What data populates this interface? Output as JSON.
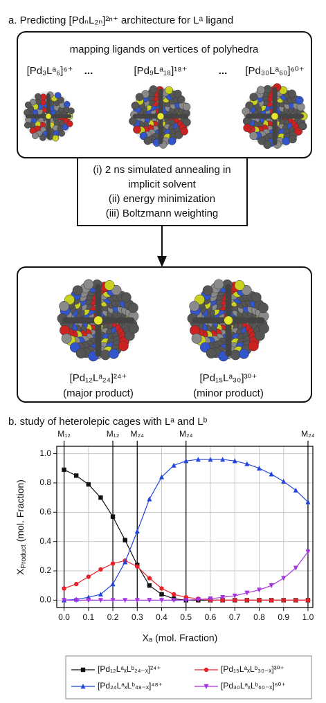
{
  "panel_a": {
    "title": "a. Predicting [PdₙL₂ₙ]²ⁿ⁺ architecture for Lᵃ ligand",
    "box_title": "mapping ligands on vertices of polyhedra",
    "ellipsis": "...",
    "candidates": [
      "[Pd₃Lᵃ₆]⁶⁺",
      "[Pd₉Lᵃ₁₈]¹⁸⁺",
      "[Pd₃₀Lᵃ₆₀]⁶⁰⁺"
    ],
    "steps": [
      "(i) 2 ns simulated annealing in",
      "implicit solvent",
      "(ii) energy minimization",
      "(iii) Boltzmann weighting"
    ],
    "products": [
      {
        "formula": "[Pd₁₂Lᵃ₂₄]²⁴⁺",
        "note": "(major product)"
      },
      {
        "formula": "[Pd₁₅Lᵃ₃₀]³⁰⁺",
        "note": "(minor product)"
      }
    ]
  },
  "chart_data": {
    "type": "line",
    "title": "b. study of heterolepic cages with Lᵃ and Lᵇ",
    "x_label": "Xₐ  (mol. Fraction)",
    "y_label": {
      "main": "X",
      "sub": "Product",
      "unit": " (mol. Fraction)"
    },
    "x": [
      0,
      0.05,
      0.1,
      0.15,
      0.2,
      0.25,
      0.3,
      0.35,
      0.4,
      0.45,
      0.5,
      0.55,
      0.6,
      0.65,
      0.7,
      0.75,
      0.8,
      0.85,
      0.9,
      0.95,
      1
    ],
    "series": [
      {
        "name": "[Pd₁₂LᵃₓLᵇ₂₄₋ₓ]²⁴⁺",
        "color": "#111111",
        "marker": "square",
        "values": [
          0.89,
          0.85,
          0.79,
          0.7,
          0.57,
          0.41,
          0.24,
          0.1,
          0.04,
          0.01,
          0,
          0,
          0,
          0,
          0,
          0,
          0,
          0,
          0,
          0,
          0
        ]
      },
      {
        "name": "[Pd₁₅LᵃₓLᵇ₃₀₋ₓ]³⁰⁺",
        "color": "#e8222a",
        "marker": "circle",
        "values": [
          0.08,
          0.11,
          0.16,
          0.21,
          0.25,
          0.27,
          0.23,
          0.15,
          0.08,
          0.04,
          0.02,
          0.01,
          0,
          0,
          0,
          0,
          0,
          0,
          0,
          0,
          0
        ]
      },
      {
        "name": "[Pd₂₄LᵃₓLᵇ₄₈₋ₓ]⁴⁸⁺",
        "color": "#2244dd",
        "marker": "triangle-up",
        "values": [
          0,
          0.005,
          0.02,
          0.04,
          0.11,
          0.26,
          0.47,
          0.69,
          0.84,
          0.92,
          0.95,
          0.96,
          0.96,
          0.96,
          0.95,
          0.93,
          0.9,
          0.86,
          0.81,
          0.75,
          0.67
        ]
      },
      {
        "name": "[Pd₃₀LᵃₓLᵇ₆₀₋ₓ]⁶⁰⁺",
        "color": "#a633e0",
        "marker": "triangle-down",
        "values": [
          0,
          0,
          0,
          0,
          0,
          0,
          0,
          0,
          0,
          0,
          0,
          0.005,
          0.01,
          0.02,
          0.03,
          0.05,
          0.07,
          0.1,
          0.15,
          0.22,
          0.33
        ]
      }
    ],
    "xlim": [
      -0.03,
      1.02
    ],
    "ylim": [
      -0.05,
      1.05
    ],
    "xticks": [
      {
        "value": 0,
        "label": "0.0"
      },
      0.1,
      0.2,
      0.3,
      0.4,
      0.5,
      0.6,
      0.7,
      0.8,
      0.9,
      {
        "value": 1,
        "label": "1.0"
      }
    ],
    "yticks": [
      {
        "value": 0,
        "label": "0.0"
      },
      0.2,
      0.4,
      0.6,
      0.8,
      {
        "value": 1,
        "label": "1.0"
      }
    ],
    "reference_lines": [
      {
        "value": 0,
        "label": "M₁₂"
      },
      {
        "value": 0.2,
        "label": "M₁₂"
      },
      {
        "value": 0.3,
        "label": "M₂₄"
      },
      {
        "value": 0.5,
        "label": "M₂₄"
      },
      {
        "value": 1,
        "label": "M₂₄"
      }
    ],
    "grid": true
  }
}
